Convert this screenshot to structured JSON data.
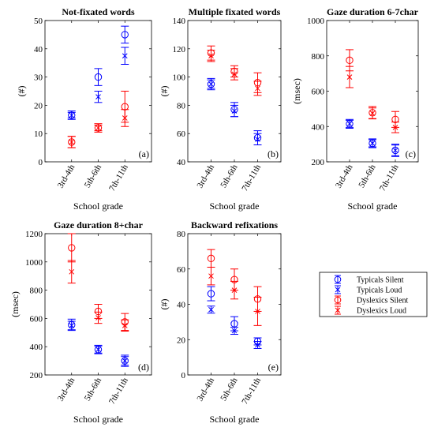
{
  "chart_data": [
    {
      "type": "scatter",
      "title": "Not-fixated words",
      "ylabel": "(#)",
      "xlabel": "School grade",
      "panel_label": "(a)",
      "categories": [
        "3rd-4th",
        "5th-6th",
        "7th-11th"
      ],
      "ylim": [
        0,
        50
      ],
      "yticks": [
        "0",
        "10",
        "20",
        "30",
        "40",
        "50"
      ],
      "series": [
        {
          "name": "Typicals Silent",
          "values": [
            16.5,
            30,
            45
          ],
          "err": [
            1.5,
            3,
            3
          ]
        },
        {
          "name": "Typicals Loud",
          "values": [
            16.5,
            23,
            37.5
          ],
          "err": [
            1,
            2,
            3
          ]
        },
        {
          "name": "Dyslexics Silent",
          "values": [
            7,
            12,
            19.5
          ],
          "err": [
            2,
            1.5,
            5.5
          ]
        },
        {
          "name": "Dyslexics Loud",
          "values": [
            7,
            12,
            15.5
          ],
          "err": [
            2,
            1,
            3
          ]
        }
      ]
    },
    {
      "type": "scatter",
      "title": "Multiple fixated words",
      "ylabel": "(#)",
      "xlabel": "School grade",
      "panel_label": "(b)",
      "categories": [
        "3rd-4th",
        "5th-6th",
        "7th-11th"
      ],
      "ylim": [
        40,
        140
      ],
      "yticks": [
        "40",
        "60",
        "80",
        "100",
        "120",
        "140"
      ],
      "series": [
        {
          "name": "Typicals Silent",
          "values": [
            95,
            77,
            57
          ],
          "err": [
            4,
            5,
            5
          ]
        },
        {
          "name": "Typicals Loud",
          "values": [
            95,
            76,
            56
          ],
          "err": [
            3,
            4,
            4
          ]
        },
        {
          "name": "Dyslexics Silent",
          "values": [
            117,
            104,
            96
          ],
          "err": [
            5,
            4,
            7
          ]
        },
        {
          "name": "Dyslexics Loud",
          "values": [
            115,
            102,
            92
          ],
          "err": [
            4,
            4,
            5
          ]
        }
      ]
    },
    {
      "type": "scatter",
      "title": "Gaze duration 6-7char",
      "ylabel": "(msec)",
      "xlabel": "School grade",
      "panel_label": "(c)",
      "categories": [
        "3rd-4th",
        "5th-6th",
        "7th-11th"
      ],
      "ylim": [
        200,
        1000
      ],
      "yticks": [
        "200",
        "400",
        "600",
        "800",
        "1000"
      ],
      "series": [
        {
          "name": "Typicals Silent",
          "values": [
            415,
            305,
            265
          ],
          "err": [
            25,
            25,
            35
          ]
        },
        {
          "name": "Typicals Loud",
          "values": [
            415,
            305,
            265
          ],
          "err": [
            20,
            20,
            30
          ]
        },
        {
          "name": "Dyslexics Silent",
          "values": [
            775,
            478,
            440
          ],
          "err": [
            60,
            35,
            45
          ]
        },
        {
          "name": "Dyslexics Loud",
          "values": [
            680,
            475,
            395
          ],
          "err": [
            60,
            30,
            30
          ]
        }
      ]
    },
    {
      "type": "scatter",
      "title": "Gaze duration 8+char",
      "ylabel": "(msec)",
      "xlabel": "School grade",
      "panel_label": "(d)",
      "categories": [
        "3rd-4th",
        "5th-6th",
        "7th-11th"
      ],
      "ylim": [
        200,
        1200
      ],
      "yticks": [
        "200",
        "400",
        "600",
        "800",
        "1000",
        "1200"
      ],
      "series": [
        {
          "name": "Typicals Silent",
          "values": [
            555,
            380,
            300
          ],
          "err": [
            40,
            30,
            40
          ]
        },
        {
          "name": "Typicals Loud",
          "values": [
            550,
            380,
            300
          ],
          "err": [
            30,
            25,
            30
          ]
        },
        {
          "name": "Dyslexics Silent",
          "values": [
            1100,
            650,
            575
          ],
          "err": [
            100,
            50,
            60
          ]
        },
        {
          "name": "Dyslexics Loud",
          "values": [
            930,
            605,
            550
          ],
          "err": [
            80,
            40,
            40
          ]
        }
      ]
    },
    {
      "type": "scatter",
      "title": "Backward refixations",
      "ylabel": "(#)",
      "xlabel": "School grade",
      "panel_label": "(e)",
      "categories": [
        "3rd-4th",
        "5th-6th",
        "7th-11th"
      ],
      "ylim": [
        0,
        80
      ],
      "yticks": [
        "0",
        "20",
        "40",
        "60",
        "80"
      ],
      "series": [
        {
          "name": "Typicals Silent",
          "values": [
            46,
            29,
            19
          ],
          "err": [
            4,
            4,
            2
          ]
        },
        {
          "name": "Typicals Loud",
          "values": [
            37,
            25,
            17
          ],
          "err": [
            2,
            2,
            2
          ]
        },
        {
          "name": "Dyslexics Silent",
          "values": [
            66,
            54,
            43
          ],
          "err": [
            5,
            6,
            7
          ]
        },
        {
          "name": "Dyslexics Loud",
          "values": [
            56,
            48,
            36
          ],
          "err": [
            5,
            5,
            8
          ]
        }
      ]
    }
  ],
  "legend": {
    "entries": [
      {
        "label": "Typicals Silent",
        "color": "#0000ff",
        "marker": "o"
      },
      {
        "label": "Typicals Loud",
        "color": "#0000ff",
        "marker": "x"
      },
      {
        "label": "Dyslexics Silent",
        "color": "#ff0000",
        "marker": "o"
      },
      {
        "label": "Dyslexics Loud",
        "color": "#ff0000",
        "marker": "x"
      }
    ]
  },
  "colors": {
    "typicals": "#0000ff",
    "dyslexics": "#ff0000"
  }
}
